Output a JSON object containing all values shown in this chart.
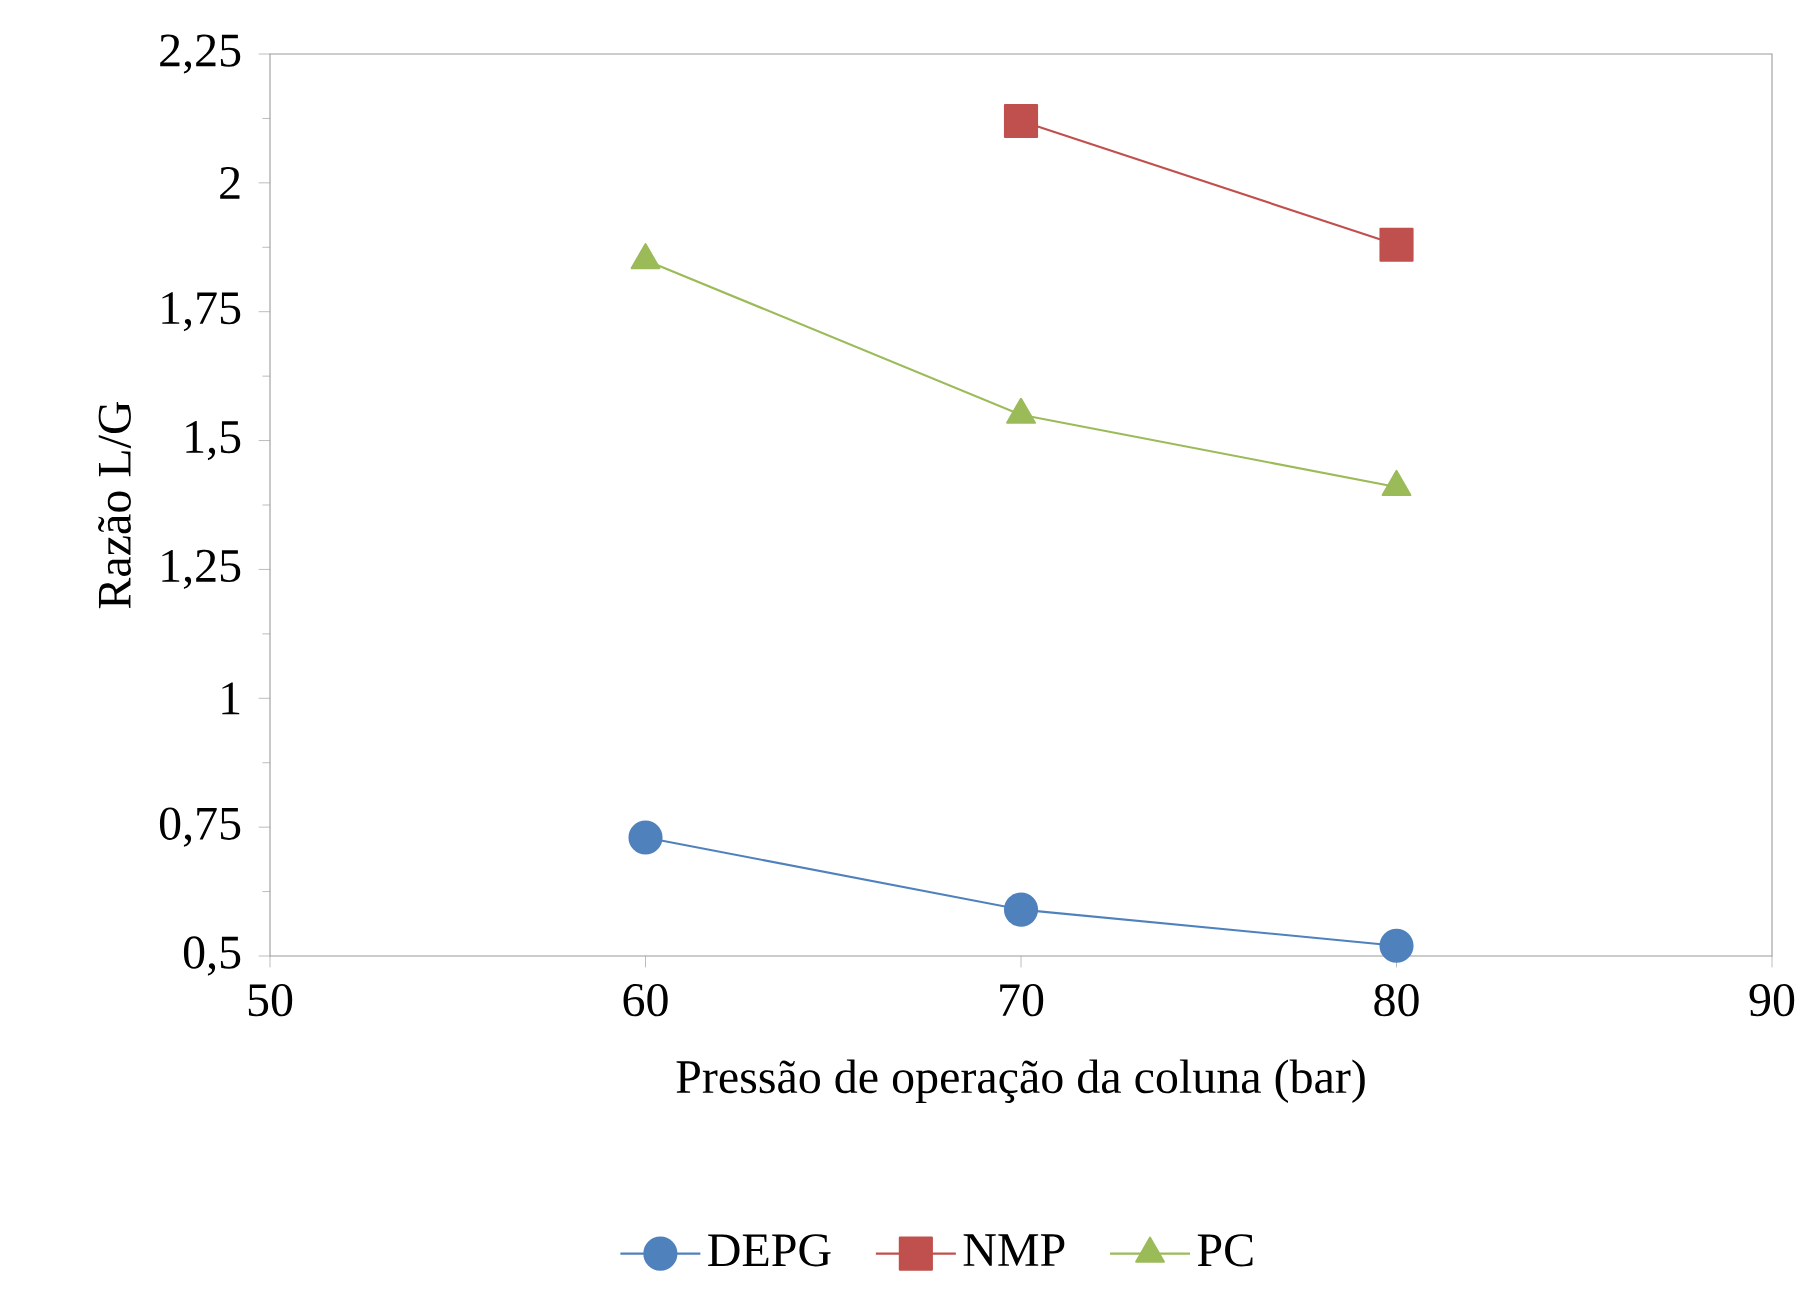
{
  "chart_data": {
    "type": "line",
    "xlabel": "Pressão de operação da coluna (bar)",
    "ylabel": "Razão L/G",
    "x": [
      60,
      70,
      80
    ],
    "series": [
      {
        "name": "DEPG",
        "color": "#4f81bd",
        "marker": "circle",
        "values": [
          0.73,
          0.59,
          0.52
        ]
      },
      {
        "name": "NMP",
        "color": "#c0504d",
        "marker": "square",
        "values": [
          null,
          2.12,
          1.88
        ]
      },
      {
        "name": "PC",
        "color": "#9bbb59",
        "marker": "triangle",
        "values": [
          1.85,
          1.55,
          1.41
        ]
      }
    ],
    "xlim": [
      50,
      90
    ],
    "xticks": [
      50,
      60,
      70,
      80,
      90
    ],
    "ylim": [
      0.5,
      2.25
    ],
    "yticks": [
      {
        "value": 0.5,
        "label": "0,5"
      },
      {
        "value": 0.75,
        "label": "0,75"
      },
      1,
      {
        "value": 1.25,
        "label": "1,25"
      },
      {
        "value": 1.5,
        "label": "1,5"
      },
      {
        "value": 1.75,
        "label": "1,75"
      },
      2,
      {
        "value": 2.25,
        "label": "2,25"
      }
    ],
    "grid": false,
    "legend": "bottom"
  }
}
